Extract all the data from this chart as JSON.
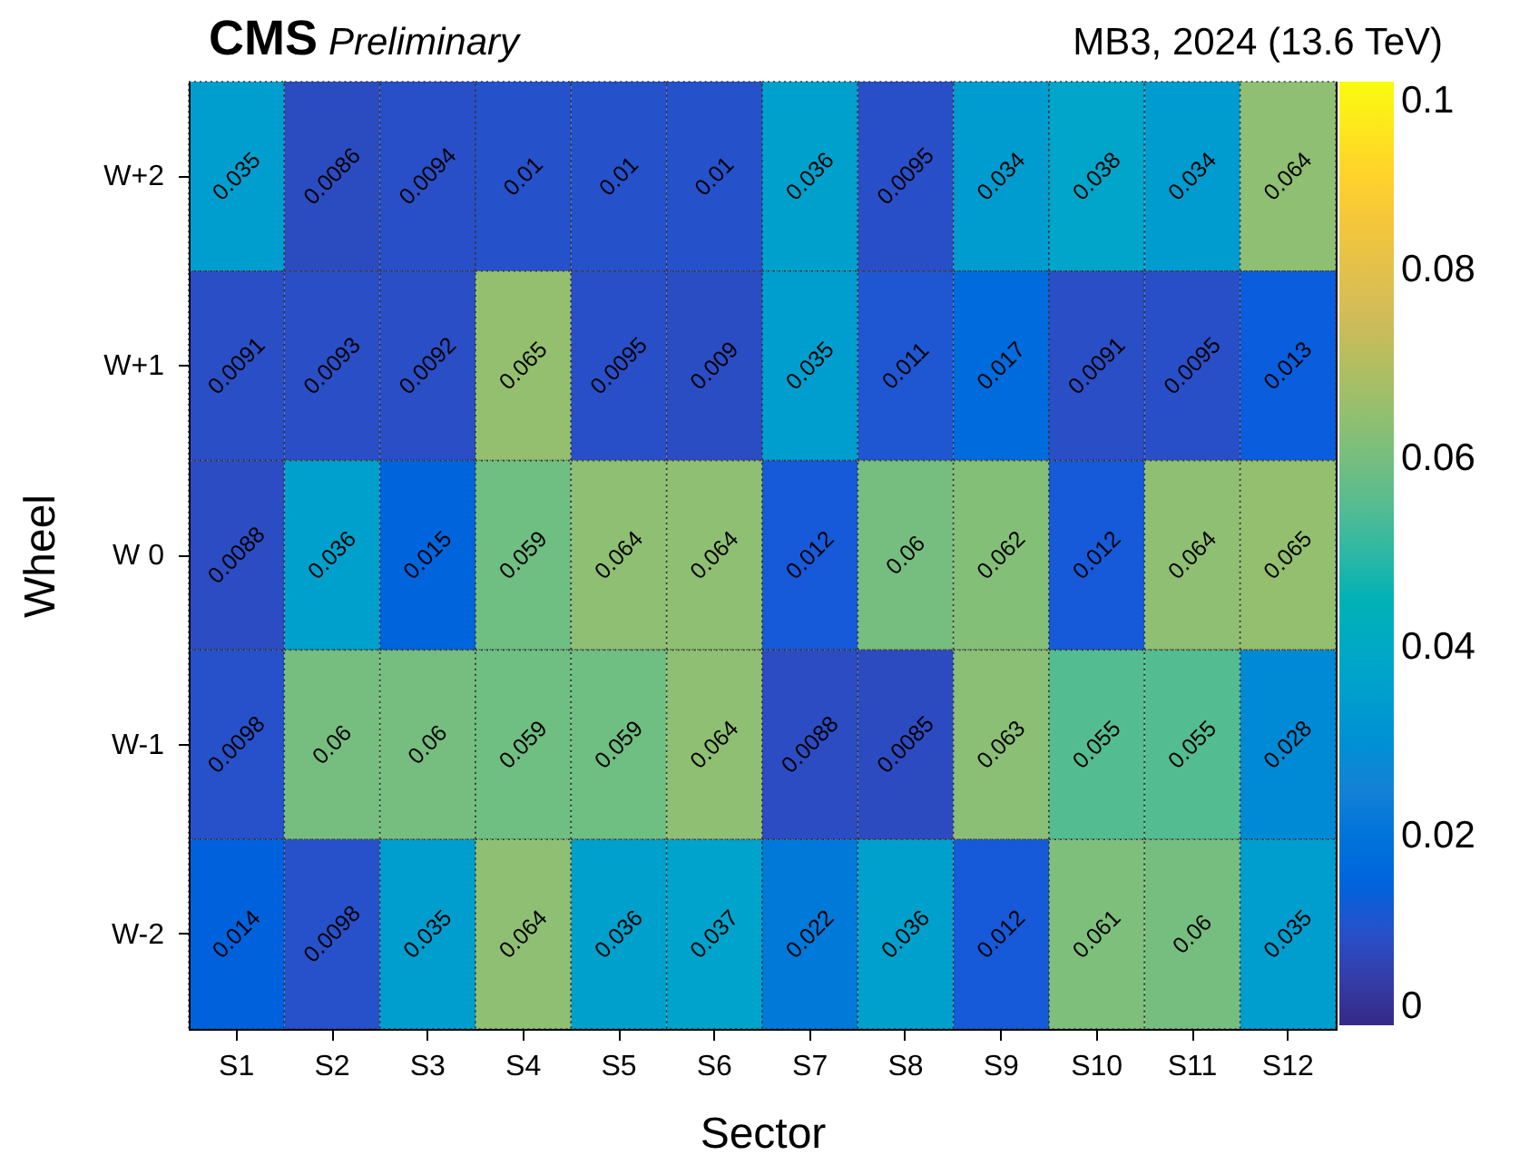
{
  "chart_data": {
    "type": "heatmap",
    "title": "CMS",
    "subtitle": "Preliminary",
    "annotations": [
      "MB3, 2024 (13.6 TeV)"
    ],
    "xlabel": "Sector",
    "ylabel": "Wheel",
    "categories": [
      "S1",
      "S2",
      "S3",
      "S4",
      "S5",
      "S6",
      "S7",
      "S8",
      "S9",
      "S10",
      "S11",
      "S12"
    ],
    "y_categories": [
      "W+2",
      "W+1",
      "W 0",
      "W-1",
      "W-2"
    ],
    "cells": [
      [
        0.035,
        0.0086,
        0.0094,
        0.01,
        0.01,
        0.01,
        0.036,
        0.0095,
        0.034,
        0.038,
        0.034,
        0.064
      ],
      [
        0.0091,
        0.0093,
        0.0092,
        0.065,
        0.0095,
        0.009,
        0.035,
        0.011,
        0.017,
        0.0091,
        0.0095,
        0.013
      ],
      [
        0.0088,
        0.036,
        0.015,
        0.059,
        0.064,
        0.064,
        0.012,
        0.06,
        0.062,
        0.012,
        0.064,
        0.065
      ],
      [
        0.0098,
        0.06,
        0.06,
        0.059,
        0.059,
        0.064,
        0.0088,
        0.0085,
        0.063,
        0.055,
        0.055,
        0.028
      ],
      [
        0.014,
        0.0098,
        0.035,
        0.064,
        0.036,
        0.037,
        0.022,
        0.036,
        0.012,
        0.061,
        0.06,
        0.035
      ]
    ],
    "data_labels": true,
    "clim": [
      0,
      0.1
    ],
    "cticks": [
      0,
      0.02,
      0.04,
      0.06,
      0.08,
      0.1
    ]
  }
}
